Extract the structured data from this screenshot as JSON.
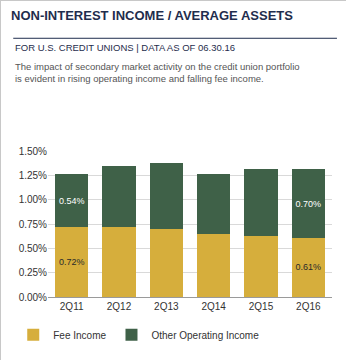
{
  "chart_data": {
    "type": "bar",
    "title": "NON-INTEREST INCOME / AVERAGE ASSETS",
    "subtitle": "FOR U.S. CREDIT UNIONS | DATA AS OF 06.30.16",
    "annotations": [
      "The impact of secondary market activity on the credit union portfolio is evident in rising operating income and falling fee income."
    ],
    "categories": [
      "2Q11",
      "2Q12",
      "2Q13",
      "2Q14",
      "2Q15",
      "2Q16"
    ],
    "series": [
      {
        "name": "Fee Income",
        "color": "#d6ae3c",
        "values": [
          0.72,
          0.72,
          0.7,
          0.65,
          0.63,
          0.61
        ],
        "value_labels": [
          "0.72%",
          null,
          null,
          null,
          null,
          "0.61%"
        ]
      },
      {
        "name": "Other Operating Income",
        "color": "#3f6148",
        "values": [
          0.54,
          0.63,
          0.68,
          0.61,
          0.69,
          0.7
        ],
        "value_labels": [
          "0.54%",
          null,
          null,
          null,
          null,
          "0.70%"
        ]
      }
    ],
    "stacked": true,
    "data_labels": true,
    "ylim": [
      0,
      1.5
    ],
    "yticks": [
      {
        "value": 0,
        "label": "0.00%"
      },
      {
        "value": 0.25,
        "label": "0.25%"
      },
      {
        "value": 0.5,
        "label": "0.50%"
      },
      {
        "value": 0.75,
        "label": "0.75%"
      },
      {
        "value": 1.0,
        "label": "1.00%"
      },
      {
        "value": 1.25,
        "label": "1.25%"
      },
      {
        "value": 1.5,
        "label": "1.50%"
      }
    ],
    "grid": true,
    "legend": "bottom"
  }
}
